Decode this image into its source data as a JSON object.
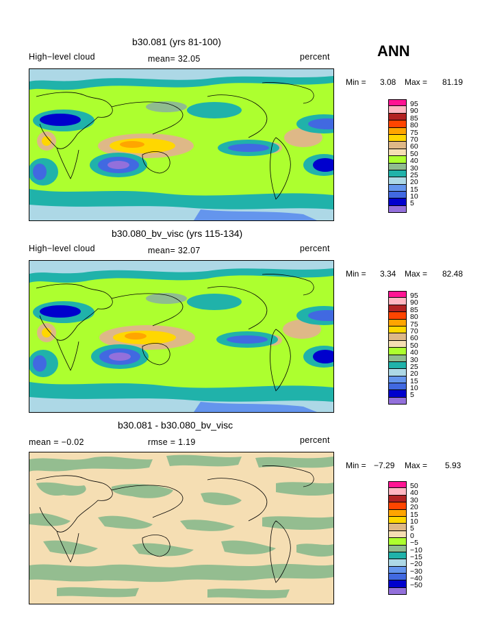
{
  "season": "ANN",
  "legend_colors": [
    "#9370db",
    "#0000cd",
    "#4169e1",
    "#6495ed",
    "#add8e6",
    "#20b2aa",
    "#8fbc8f",
    "#adff2f",
    "#f5deb3",
    "#deb887",
    "#ffd700",
    "#ffa500",
    "#ff4500",
    "#b22222",
    "#ffb6c1",
    "#ff1493"
  ],
  "panels": [
    {
      "title": "b30.081 (yrs 81-100)",
      "left_label": "High−level cloud",
      "center_label": "mean=  32.05",
      "right_label": "percent",
      "min_label": "Min =",
      "min_value": "3.08",
      "max_label": "Max =",
      "max_value": "81.19",
      "legend_levels": [
        "95",
        "90",
        "85",
        "80",
        "75",
        "70",
        "60",
        "50",
        "40",
        "30",
        "25",
        "20",
        "15",
        "10",
        "5"
      ]
    },
    {
      "title": "b30.080_bv_visc (yrs 115-134)",
      "left_label": "High−level cloud",
      "center_label": "mean=  32.07",
      "right_label": "percent",
      "min_label": "Min =",
      "min_value": "3.34",
      "max_label": "Max =",
      "max_value": "82.48",
      "legend_levels": [
        "95",
        "90",
        "85",
        "80",
        "75",
        "70",
        "60",
        "50",
        "40",
        "30",
        "25",
        "20",
        "15",
        "10",
        "5"
      ]
    },
    {
      "title": "b30.081 - b30.080_bv_visc",
      "left_label": "mean =   −0.02",
      "center_label": "rmse =    1.19",
      "right_label": "percent",
      "min_label": "Min =",
      "min_value": "−7.29",
      "max_label": "Max =",
      "max_value": "5.93",
      "legend_levels": [
        "50",
        "40",
        "30",
        "20",
        "15",
        "10",
        "5",
        "0",
        "−5",
        "−10",
        "−15",
        "−20",
        "−30",
        "−40",
        "−50"
      ]
    }
  ]
}
